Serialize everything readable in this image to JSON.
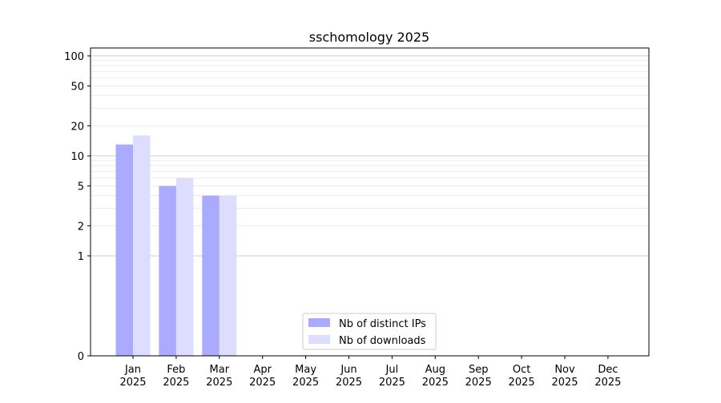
{
  "chart_data": {
    "type": "bar",
    "title": "sschomology 2025",
    "categories": [
      "Jan\n2025",
      "Feb\n2025",
      "Mar\n2025",
      "Apr\n2025",
      "May\n2025",
      "Jun\n2025",
      "Jul\n2025",
      "Aug\n2025",
      "Sep\n2025",
      "Oct\n2025",
      "Nov\n2025",
      "Dec\n2025"
    ],
    "series": [
      {
        "name": "Nb of distinct IPs",
        "values": [
          13,
          5,
          4,
          0,
          0,
          0,
          0,
          0,
          0,
          0,
          0,
          0
        ],
        "color": "#aaaaff"
      },
      {
        "name": "Nb of downloads",
        "values": [
          16,
          6,
          4,
          0,
          0,
          0,
          0,
          0,
          0,
          0,
          0,
          0
        ],
        "color": "#ddddff"
      }
    ],
    "yscale": "symlog",
    "yticks": [
      0,
      1,
      2,
      5,
      10,
      20,
      50,
      100
    ],
    "ytick_labels": [
      "0",
      "1",
      "2",
      "5",
      "10",
      "20",
      "50",
      "100"
    ],
    "ylim": [
      0,
      120
    ],
    "grid": true,
    "legend_position": "bottom-center",
    "xlabel": "",
    "ylabel": ""
  }
}
